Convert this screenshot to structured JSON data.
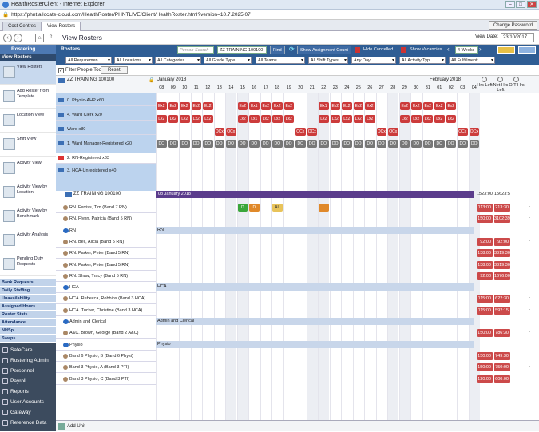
{
  "window": {
    "title": "HealthRosterClient - Internet Explorer",
    "url": "https://phnt.allocate-cloud.com/HealthRoster/PHNTLIVE/Client/HealthRoster.html?version=10.7.2025.07"
  },
  "tabs": [
    "Cost Centres",
    "View Rosters"
  ],
  "change_password": "Change Password",
  "page_title": "View Rosters",
  "view_date_label": "View Date:",
  "view_date": "23/10/2017",
  "sidebar": {
    "header": "Rostering",
    "section": "View Rosters",
    "items": [
      "View Rosters",
      "Add Roster from Template",
      "Location View",
      "Shift View",
      "Activity View",
      "Activity View by Location",
      "Activity View by Benchmark",
      "Activity Analysis",
      "Pending Duty Requests"
    ],
    "blue_items": [
      "Bank Requests",
      "Daily Staffing",
      "Unavailability",
      "Assigned Hours",
      "Roster Stats",
      "Attendance",
      "NHSp",
      "Swaps"
    ],
    "dark_items": [
      "SafeCare",
      "Rostering Admin",
      "Personnel",
      "Payroll",
      "Reports",
      "User Accounts",
      "Gateway",
      "Reference Data"
    ]
  },
  "toolbar": {
    "title": "Rosters",
    "search_placeholder": "Person Search",
    "unit": "ZZ TRAINING 100100",
    "find": "Find",
    "show_assignment_count": "Show Assignment Count",
    "hide_cancelled": "Hide Cancelled",
    "show_vacancies": "Show Vacancies",
    "period": "4 Weeks"
  },
  "filters": [
    "All Requiremen",
    "All Locations",
    "All Categories",
    "All Grade Type",
    "All Teams",
    "All Shift Types",
    "Any Day",
    "All Activity Typ",
    "All Fulfillment"
  ],
  "filter_people": "Filter People Too",
  "reset": "Reset",
  "grid": {
    "unit_label": "ZZ TRAINING 100100",
    "month1": "January 2018",
    "month2": "February 2018",
    "days": [
      "08",
      "09",
      "10",
      "11",
      "12",
      "13",
      "14",
      "15",
      "16",
      "17",
      "18",
      "19",
      "20",
      "21",
      "22",
      "23",
      "24",
      "25",
      "26",
      "27",
      "28",
      "29",
      "30",
      "31",
      "01",
      "02",
      "03",
      "04"
    ],
    "hrs_left": "Hrs Left",
    "net_hrs_left": "Net Hrs Left",
    "ot_hrs": "O/T Hrs",
    "requirements": [
      "0. Physio-AHP x60",
      "4. Ward Clerk x20",
      "Ward  x80",
      "1. Ward Manager-Registered x20",
      "2. RN-Registered x83",
      "3. HCA-Unregistered x40"
    ],
    "unit_summary": {
      "label": "ZZ TRAINING 100100",
      "date_bar": "08 January 2018",
      "hrs": "1523:00",
      "net": "15623:5"
    },
    "people": [
      {
        "name": "RN. Ferriss, Tim (Band 7 RN)",
        "hrs": "113:00",
        "net": "213:30"
      },
      {
        "name": "RN. Flynn, Patricia (Band 5 RN)",
        "hrs": "150:00",
        "net": "3102:39"
      },
      {
        "name": "RN",
        "group": "RN"
      },
      {
        "name": "RN. Bell, Alicia (Band 5 RN)",
        "hrs": "92:00",
        "net": "92:00"
      },
      {
        "name": "RN. Parker, Peter (Band 5 RN)",
        "hrs": "138:00",
        "net": "3319:30"
      },
      {
        "name": "RN. Parker, Peter (Band 5 RN)",
        "hrs": "138:00",
        "net": "3319:30"
      },
      {
        "name": "RN. Shaw, Tracy (Band 5 RN)",
        "hrs": "92:00",
        "net": "1676:00"
      },
      {
        "name": "HCA",
        "group": "HCA"
      },
      {
        "name": "HCA. Rebecca, Robbins (Band 3 HCA)",
        "hrs": "115:00",
        "net": "622:30"
      },
      {
        "name": "HCA. Tucker, Christine (Band 3 HCA)",
        "hrs": "115:00",
        "net": "592:15"
      },
      {
        "name": "Admin and Clerical",
        "group": "Admin and Clerical"
      },
      {
        "name": "A&C. Brown, George (Band 2 A&C)",
        "hrs": "150:00",
        "net": "786:30"
      },
      {
        "name": "Physio",
        "group": "Physio"
      },
      {
        "name": "Band 6 Physio, B (Band 6 Physi)",
        "hrs": "150:00",
        "net": "749:30"
      },
      {
        "name": "Band 3 Physio, A (Band 3 PTI)",
        "hrs": "150:00",
        "net": "750:00"
      },
      {
        "name": "Band 3 Physio, C (Band 3 PTI)",
        "hrs": "120:00",
        "net": "600:00"
      }
    ],
    "add_unit": "Add Unit"
  },
  "codes": {
    "ex2": "Ex2",
    "ex1": "Ex1",
    "lx2": "Lx2",
    "lx1": "Lx1",
    "ocx": "OCx",
    "do": "DO",
    "d": "D",
    "l": "L",
    "al": "AL"
  },
  "colors": {
    "red": "#cc3b3b",
    "grey": "#777",
    "purple": "#5b3c8c",
    "groupbar": "#c8d6ea",
    "green": "#3aa63a",
    "orange": "#e0892a"
  }
}
